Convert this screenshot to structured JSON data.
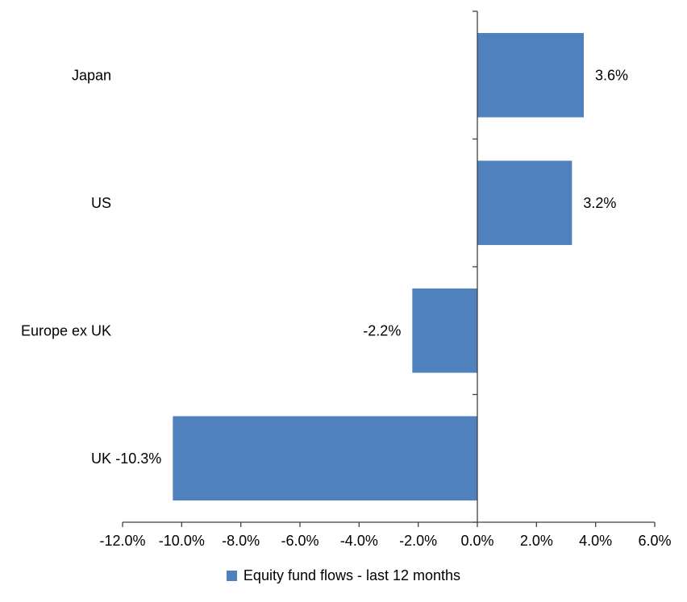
{
  "chart_data": {
    "type": "bar",
    "orientation": "horizontal",
    "categories": [
      "Japan",
      "US",
      "Europe ex UK",
      "UK"
    ],
    "values": [
      3.6,
      3.2,
      -2.2,
      -10.3
    ],
    "data_labels": [
      "3.6%",
      "3.2%",
      "-2.2%",
      "-10.3%"
    ],
    "x_tick_values": [
      -12,
      -10,
      -8,
      -6,
      -4,
      -2,
      0,
      2,
      4,
      6
    ],
    "x_ticks": [
      "-12.0%",
      "-10.0%",
      "-8.0%",
      "-6.0%",
      "-4.0%",
      "-2.0%",
      "0.0%",
      "2.0%",
      "4.0%",
      "6.0%"
    ],
    "xlim": [
      -12,
      6
    ],
    "title": "",
    "xlabel": "",
    "ylabel": "",
    "legend": "Equity fund flows - last 12 months",
    "legend_position": "bottom",
    "grid": false,
    "bar_color": "#4F81BD",
    "axis_color": "#404040",
    "text_color": "#000000"
  }
}
